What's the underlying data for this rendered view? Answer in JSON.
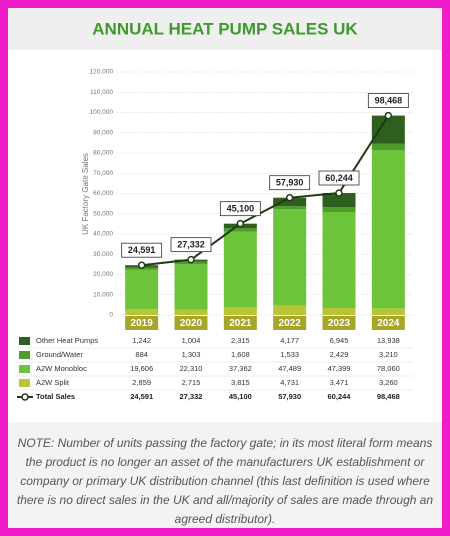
{
  "chart_data": {
    "type": "bar",
    "title": "ANNUAL HEAT PUMP SALES UK",
    "y_label": "UK Factory Gate Sales",
    "categories": [
      "2019",
      "2020",
      "2021",
      "2022",
      "2023",
      "2024"
    ],
    "series": [
      {
        "name": "Other Heat Pumps",
        "color": "#2f5f1f",
        "values": [
          1242,
          1004,
          2315,
          4177,
          6945,
          13938
        ],
        "value_labels": [
          "1,242",
          "1,004",
          "2,315",
          "4,177",
          "6,945",
          "13,938"
        ]
      },
      {
        "name": "Ground/Water",
        "color": "#4f9b2c",
        "values": [
          884,
          1303,
          1608,
          1533,
          2429,
          3210
        ],
        "value_labels": [
          "884",
          "1,303",
          "1,608",
          "1,533",
          "2,429",
          "3,210"
        ]
      },
      {
        "name": "A2W Monobloc",
        "color": "#6cc43b",
        "values": [
          19606,
          22310,
          37362,
          47489,
          47399,
          78060
        ],
        "value_labels": [
          "19,606",
          "22,310",
          "37,362",
          "47,489",
          "47,399",
          "78,060"
        ]
      },
      {
        "name": "A2W Split",
        "color": "#b7c536",
        "values": [
          2859,
          2715,
          3815,
          4731,
          3471,
          3260
        ],
        "value_labels": [
          "2,859",
          "2,715",
          "3,815",
          "4,731",
          "3,471",
          "3,260"
        ]
      }
    ],
    "total": {
      "name": "Total Sales",
      "color": "#1e3b13",
      "values": [
        24591,
        27332,
        45100,
        57930,
        60244,
        98468
      ],
      "value_labels": [
        "24,591",
        "27,332",
        "45,100",
        "57,930",
        "60,244",
        "98,468"
      ]
    },
    "ylim": [
      0,
      120000
    ],
    "yticks": [
      0,
      {
        "value": 10000,
        "label": "10,000"
      },
      {
        "value": 20000,
        "label": "20,000"
      },
      {
        "value": 30000,
        "label": "30,000"
      },
      {
        "value": 40000,
        "label": "40,000"
      },
      {
        "value": 50000,
        "label": "50,000"
      },
      {
        "value": 60000,
        "label": "60,000"
      },
      {
        "value": 70000,
        "label": "70,000"
      },
      {
        "value": 80000,
        "label": "80,000"
      },
      {
        "value": 90000,
        "label": "90,000"
      },
      {
        "value": 100000,
        "label": "100,000"
      },
      {
        "value": 110000,
        "label": "110,000"
      },
      {
        "value": 120000,
        "label": "120,000"
      }
    ],
    "grid": true
  },
  "note": "NOTE: Number of units passing the factory gate; in its most literal form means the product is no longer an asset of the manufacturers UK establishment or company or primary UK distribution channel (this last definition is used where there is no direct sales in the UK and all/majority of sales are made through an agreed distributor)."
}
